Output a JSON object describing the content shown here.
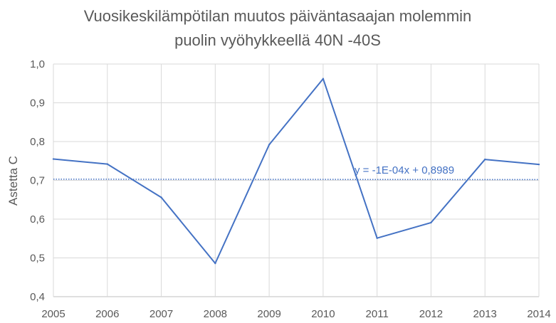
{
  "chart_data": {
    "type": "line",
    "title_lines": [
      "Vuosikeskilämpötilan muutos päiväntasaajan molemmin",
      "puolin vyöhykkeellä 40N -40S"
    ],
    "xlabel": "",
    "ylabel": "Astetta C",
    "x": [
      2005,
      2006,
      2007,
      2008,
      2009,
      2010,
      2011,
      2012,
      2013,
      2014
    ],
    "x_tick_labels": [
      "2005",
      "2006",
      "2007",
      "2008",
      "2009",
      "2010",
      "2011",
      "2012",
      "2013",
      "2014"
    ],
    "ylim": [
      0.4,
      1.0
    ],
    "y_ticks": [
      0.4,
      0.5,
      0.6,
      0.7,
      0.8,
      0.9,
      1.0
    ],
    "y_tick_labels": [
      "0,4",
      "0,5",
      "0,6",
      "0,7",
      "0,8",
      "0,9",
      "1,0"
    ],
    "grid": true,
    "series": [
      {
        "values": [
          0.755,
          0.742,
          0.656,
          0.486,
          0.792,
          0.962,
          0.551,
          0.591,
          0.754,
          0.741
        ],
        "color": "#4472c4"
      }
    ],
    "trendline": {
      "style": "dotted",
      "color": "#4472c4",
      "start_value": 0.703,
      "end_value": 0.702,
      "label": "y = -1E-04x + 0,8989"
    }
  }
}
